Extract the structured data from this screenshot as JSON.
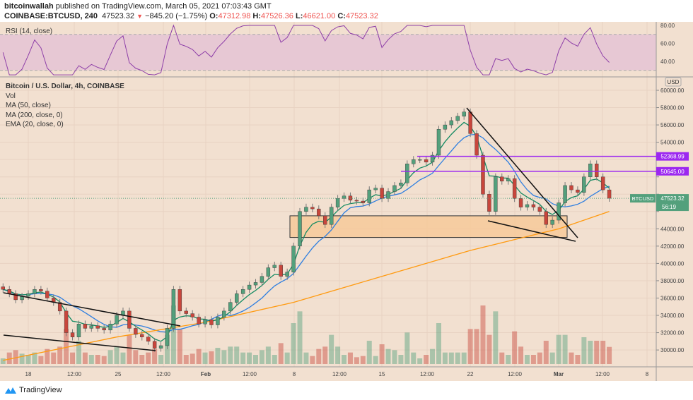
{
  "header": {
    "author": "bitcoinwallah",
    "published": "published on TradingView.com, March 05, 2021 07:03:43 GMT",
    "symbol": "COINBASE:BTCUSD, 240",
    "last": "47523.32",
    "change": "−845.20 (−1.75%)",
    "o_label": "O:",
    "o": "47312.98",
    "h_label": "H:",
    "h": "47526.36",
    "l_label": "L:",
    "l": "46621.00",
    "c_label": "C:",
    "c": "47523.32"
  },
  "legend": {
    "title": "Bitcoin / U.S. Dollar, 4h, COINBASE",
    "vol": "Vol",
    "ma50": "MA (50, close)",
    "ma200": "MA (200, close, 0)",
    "ema20": "EMA (20, close, 0)"
  },
  "rsi_label": "RSI (14, close)",
  "currency": "USD",
  "price_tag": {
    "symbol": "BTCUSD",
    "price": "47523.32",
    "countdown": "56:19"
  },
  "levels": [
    {
      "label": "52368.99",
      "value": 52368.99
    },
    {
      "label": "50645.00",
      "value": 50645
    }
  ],
  "brand": "TradingView",
  "colors": {
    "up": "#53a07c",
    "down": "#c8463c",
    "ema20": "#138a62",
    "ma50": "#2f7fe0",
    "ma200": "#ff9a10",
    "level": "#9c27f0",
    "zone": "#f6c896",
    "bg": "#f2e0d0",
    "rsi": "#8e3fa8"
  },
  "chart_data": {
    "type": "candlestick",
    "interval_shown": "12h approximation of 4h chart, starting Jan 16",
    "closes": [
      37000,
      36500,
      35800,
      36200,
      36500,
      37000,
      36800,
      36000,
      35500,
      34500,
      32000,
      31500,
      33000,
      32500,
      32800,
      32500,
      32300,
      33000,
      34000,
      34500,
      32500,
      31800,
      31500,
      31000,
      30200,
      30500,
      32500,
      37000,
      34500,
      34200,
      33800,
      33000,
      33500,
      32900,
      33800,
      34500,
      35500,
      36500,
      37000,
      37500,
      37800,
      38500,
      39500,
      39800,
      38500,
      39000,
      42000,
      46000,
      46500,
      46300,
      45500,
      44500,
      46500,
      47500,
      47800,
      47300,
      47200,
      47000,
      48500,
      48700,
      47500,
      48300,
      49000,
      49300,
      51500,
      52000,
      52000,
      51700,
      52500,
      55500,
      56000,
      56500,
      57000,
      57500,
      55000,
      52500,
      48000,
      46000,
      50000,
      49500,
      49800,
      47500,
      46500,
      46800,
      46500,
      46000,
      44500,
      45000,
      47000,
      49000,
      48500,
      48200,
      50000,
      51500,
      50000,
      48500,
      47523.32
    ],
    "ma200_points": [
      [
        0,
        28800
      ],
      [
        18,
        31500
      ],
      [
        32,
        33200
      ],
      [
        46,
        35500
      ],
      [
        60,
        38500
      ],
      [
        74,
        41500
      ],
      [
        88,
        44000
      ],
      [
        96,
        46000
      ]
    ],
    "x_ticks": [
      "18",
      "12:00",
      "25",
      "12:00",
      "Feb",
      "12:00",
      "8",
      "12:00",
      "15",
      "12:00",
      "22",
      "12:00",
      "Mar",
      "12:00",
      "8"
    ],
    "y_ticks": [
      30000,
      32000,
      34000,
      36000,
      38000,
      40000,
      42000,
      44000,
      46000,
      48000,
      50000,
      52000,
      54000,
      56000,
      58000,
      60000
    ],
    "rsi_ticks": [
      40,
      60,
      80
    ],
    "zone": [
      43000,
      45500
    ],
    "grid": true
  }
}
